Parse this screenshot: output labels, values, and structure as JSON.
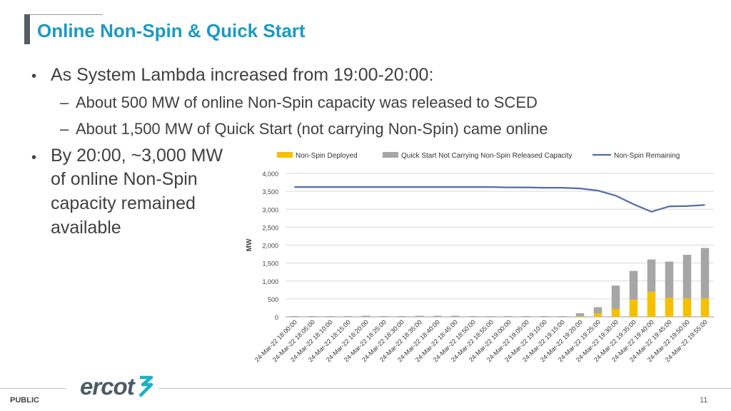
{
  "header": {
    "title": "Online Non-Spin & Quick Start"
  },
  "bullets": {
    "b1": "As System Lambda increased from 19:00-20:00:",
    "b1_sub1": "About 500 MW of online Non-Spin capacity was released to SCED",
    "b1_sub2": "About 1,500 MW of Quick Start (not carrying Non-Spin) came online",
    "b2_lines": [
      "By 20:00, ~3,000 MW",
      "of online Non-Spin",
      "capacity remained",
      "available"
    ]
  },
  "footer": {
    "logo": "ercot",
    "classification": "PUBLIC",
    "page_number": "11"
  },
  "colors": {
    "title": "#1a9ac4",
    "non_spin_deployed": "#f5c000",
    "quick_start": "#a6a6a6",
    "remaining": "#4f6ea6"
  },
  "chart_data": {
    "type": "bar",
    "stacked": true,
    "ylabel": "MW",
    "ylim": [
      0,
      4000
    ],
    "yticks": [
      "0",
      "500",
      "1,000",
      "1,500",
      "2,000",
      "2,500",
      "3,000",
      "3,500",
      "4,000"
    ],
    "grid": true,
    "legend": "top",
    "categories": [
      "24-Mar-22 18:00:00",
      "24-Mar-22 18:05:00",
      "24-Mar-22 18:10:00",
      "24-Mar-22 18:15:00",
      "24-Mar-22 18:20:00",
      "24-Mar-22 18:25:00",
      "24-Mar-22 18:30:00",
      "24-Mar-22 18:35:00",
      "24-Mar-22 18:40:00",
      "24-Mar-22 18:45:00",
      "24-Mar-22 18:50:00",
      "24-Mar-22 18:55:00",
      "24-Mar-22 19:00:00",
      "24-Mar-22 19:05:00",
      "24-Mar-22 19:10:00",
      "24-Mar-22 19:15:00",
      "24-Mar-22 19:20:00",
      "24-Mar-22 19:25:00",
      "24-Mar-22 19:30:00",
      "24-Mar-22 19:35:00",
      "24-Mar-22 19:40:00",
      "24-Mar-22 19:45:00",
      "24-Mar-22 19:50:00",
      "24-Mar-22 19:55:00"
    ],
    "series": [
      {
        "name": "Non-Spin Deployed",
        "kind": "bar",
        "values": [
          0,
          0,
          0,
          0,
          0,
          0,
          0,
          0,
          0,
          0,
          0,
          0,
          0,
          0,
          0,
          0,
          20,
          100,
          220,
          480,
          700,
          530,
          510,
          510
        ]
      },
      {
        "name": "Quick Start Not Carrying Non-Spin Released Capacity",
        "kind": "bar",
        "values": [
          20,
          20,
          20,
          20,
          30,
          20,
          20,
          30,
          30,
          30,
          20,
          20,
          20,
          20,
          20,
          20,
          80,
          170,
          650,
          800,
          900,
          1010,
          1220,
          1410
        ]
      },
      {
        "name": "Non-Spin Remaining",
        "kind": "line",
        "values": [
          3620,
          3620,
          3620,
          3620,
          3620,
          3620,
          3620,
          3620,
          3620,
          3620,
          3620,
          3620,
          3610,
          3610,
          3600,
          3600,
          3580,
          3520,
          3380,
          3140,
          2930,
          3080,
          3090,
          3120
        ]
      }
    ]
  }
}
